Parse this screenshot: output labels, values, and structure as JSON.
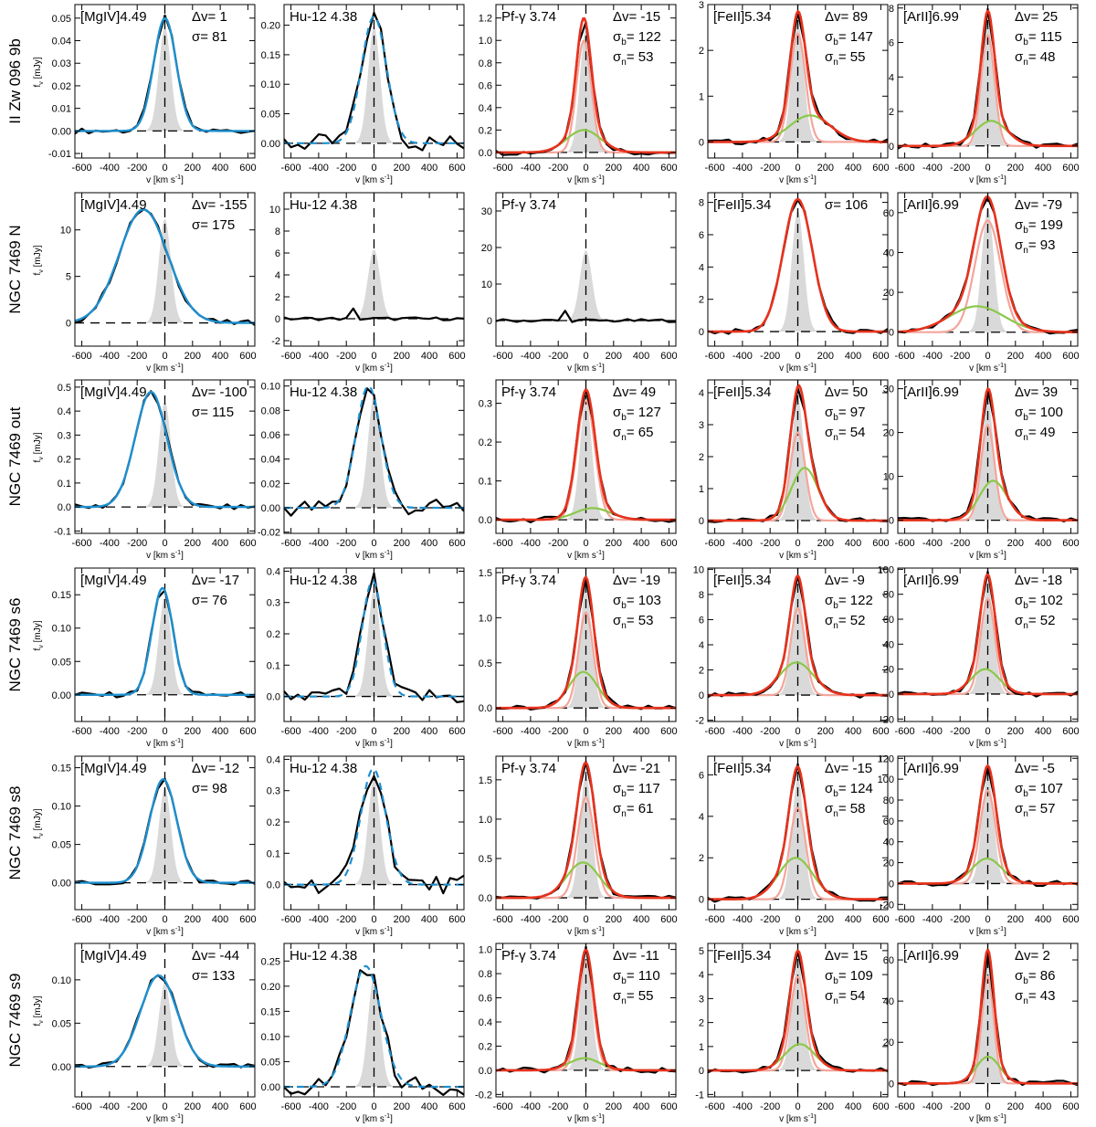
{
  "chart_data": {
    "type": "line",
    "description_axes": {
      "xlabel": "v [km s⁻¹]",
      "ylabel": "fν [mJy]",
      "xlim": [
        -650,
        650
      ],
      "xticks": [
        -600,
        -400,
        -200,
        0,
        200,
        400,
        600
      ]
    },
    "colors": {
      "data": "#000000",
      "single_fit": "#1e8fcf",
      "total_fit": "#e8321d",
      "narrow": "#f4a59b",
      "broad": "#8bc84a",
      "instrument_profile": "#d9d9d9",
      "zero_line": "#000000"
    },
    "rows": [
      {
        "label": "II Zw 096 9b",
        "panels": [
          {
            "line": "[MgIV]4.49",
            "dv": "Δv= 1",
            "s1": "σ= 81",
            "s2": "",
            "type": "single",
            "ylim": [
              -0.012,
              0.056
            ],
            "yticks": [
              -0.01,
              0.0,
              0.01,
              0.02,
              0.03,
              0.04,
              0.05
            ],
            "ydec": 2,
            "total": {
              "v0": 1,
              "peak": 0.05,
              "sigma": 81
            }
          },
          {
            "line": "Hu-12 4.38",
            "dv": "",
            "s1": "",
            "s2": "",
            "type": "dashed",
            "ylim": [
              -0.025,
              0.235
            ],
            "yticks": [
              0.0,
              0.05,
              0.1,
              0.15,
              0.2
            ],
            "ydec": 2,
            "total": {
              "v0": 0,
              "peak": 0.215,
              "sigma": 90
            }
          },
          {
            "line": "Pf-γ 3.74",
            "dv": "Δv= -15",
            "s1": "σb= 122",
            "s2": "σn= 53",
            "type": "double",
            "ylim": [
              -0.05,
              1.32
            ],
            "yticks": [
              0.0,
              0.2,
              0.4,
              0.6,
              0.8,
              1.0,
              1.2
            ],
            "ydec": 1,
            "total": {
              "v0": -15,
              "peak": 1.2
            },
            "broad": {
              "v0": -15,
              "peak": 0.2,
              "sigma": 122
            },
            "narrow": {
              "v0": -15,
              "peak": 1.0,
              "sigma": 53
            }
          },
          {
            "line": "[FeII]5.34",
            "dv": "Δv= 89",
            "s1": "σb= 147",
            "s2": "σn= 55",
            "type": "double",
            "ylim": [
              -0.35,
              3.0
            ],
            "yticks": [
              0,
              1,
              2,
              3
            ],
            "ydec": 0,
            "total": {
              "v0": 89,
              "peak": 2.85
            },
            "broad": {
              "v0": 89,
              "peak": 0.58,
              "sigma": 147
            },
            "narrow": {
              "v0": 0,
              "peak": 2.35,
              "sigma": 55
            }
          },
          {
            "line": "[ArII]6.99",
            "dv": "Δv= 25",
            "s1": "σb= 115",
            "s2": "σn= 48",
            "type": "double",
            "ylim": [
              -0.7,
              8.2
            ],
            "yticks": [
              0,
              2,
              4,
              6,
              8
            ],
            "ydec": 0,
            "total": {
              "v0": 25,
              "peak": 7.85
            },
            "broad": {
              "v0": 25,
              "peak": 1.45,
              "sigma": 115
            },
            "narrow": {
              "v0": 0,
              "peak": 6.4,
              "sigma": 48
            }
          }
        ]
      },
      {
        "label": "NGC 7469 N",
        "panels": [
          {
            "line": "[MgIV]4.49",
            "dv": "Δv= -155",
            "s1": "σ= 175",
            "s2": "",
            "type": "single",
            "ylim": [
              -2.5,
              14.0
            ],
            "yticks": [
              0,
              5,
              10
            ],
            "ydec": 0,
            "total": {
              "v0": -155,
              "peak": 12.2,
              "sigma": 175
            }
          },
          {
            "line": "Hu-12 4.38",
            "dv": "",
            "s1": "",
            "s2": "",
            "type": "none",
            "ylim": [
              -2.5,
              11.5
            ],
            "yticks": [
              -2,
              0,
              2,
              4,
              6,
              8,
              10
            ],
            "ydec": 0
          },
          {
            "line": "Pf-γ 3.74",
            "dv": "",
            "s1": "",
            "s2": "",
            "type": "none",
            "ylim": [
              -7.0,
              35.0
            ],
            "yticks": [
              0,
              10,
              20,
              30
            ],
            "ydec": 0
          },
          {
            "line": "[FeII]5.34",
            "dv": "",
            "s1": "σ= 106",
            "s2": "",
            "type": "single_red",
            "ylim": [
              -0.9,
              8.6
            ],
            "yticks": [
              0,
              2,
              4,
              6,
              8
            ],
            "ydec": 0,
            "total": {
              "v0": 0,
              "peak": 8.2,
              "sigma": 106
            }
          },
          {
            "line": "[ArII]6.99",
            "dv": "Δv= -79",
            "s1": "σb= 199",
            "s2": "σn= 93",
            "type": "double",
            "ylim": [
              -7.0,
              70.0
            ],
            "yticks": [
              0,
              20,
              40,
              60
            ],
            "ydec": 0,
            "total": {
              "v0": -79,
              "peak": 68
            },
            "broad": {
              "v0": -79,
              "peak": 13,
              "sigma": 199
            },
            "narrow": {
              "v0": 0,
              "peak": 56,
              "sigma": 93
            }
          }
        ]
      },
      {
        "label": "NGC 7469 out",
        "panels": [
          {
            "line": "[MgIV]4.49",
            "dv": "Δv= -100",
            "s1": "σ= 115",
            "s2": "",
            "type": "single",
            "ylim": [
              -0.11,
              0.53
            ],
            "yticks": [
              -0.1,
              0.0,
              0.1,
              0.2,
              0.3,
              0.4,
              0.5
            ],
            "ydec": 1,
            "total": {
              "v0": -100,
              "peak": 0.48,
              "sigma": 115
            }
          },
          {
            "line": "Hu-12 4.38",
            "dv": "",
            "s1": "",
            "s2": "",
            "type": "dashed",
            "ylim": [
              -0.021,
              0.105
            ],
            "yticks": [
              -0.02,
              0.0,
              0.02,
              0.04,
              0.06,
              0.08,
              0.1
            ],
            "ydec": 2,
            "total": {
              "v0": -40,
              "peak": 0.1,
              "sigma": 90
            }
          },
          {
            "line": "Pf-γ 3.74",
            "dv": "Δv= 49",
            "s1": "σb= 127",
            "s2": "σn= 65",
            "type": "double",
            "ylim": [
              -0.035,
              0.36
            ],
            "yticks": [
              0.0,
              0.1,
              0.2,
              0.3
            ],
            "ydec": 1,
            "total": {
              "v0": 49,
              "peak": 0.335
            },
            "broad": {
              "v0": 49,
              "peak": 0.03,
              "sigma": 127
            },
            "narrow": {
              "v0": 0,
              "peak": 0.3,
              "sigma": 65
            }
          },
          {
            "line": "[FeII]5.34",
            "dv": "Δv= 50",
            "s1": "σb= 97",
            "s2": "σn= 54",
            "type": "double",
            "ylim": [
              -0.4,
              4.4
            ],
            "yticks": [
              0,
              1,
              2,
              3,
              4
            ],
            "ydec": 0,
            "total": {
              "v0": 50,
              "peak": 4.2
            },
            "broad": {
              "v0": 50,
              "peak": 1.65,
              "sigma": 97
            },
            "narrow": {
              "v0": 0,
              "peak": 2.6,
              "sigma": 54
            }
          },
          {
            "line": "[ArII]6.99",
            "dv": "Δv= 39",
            "s1": "σb= 100",
            "s2": "σn= 49",
            "type": "double",
            "ylim": [
              -3.0,
              32.0
            ],
            "yticks": [
              0,
              10,
              20,
              30
            ],
            "ydec": 0,
            "total": {
              "v0": 39,
              "peak": 30
            },
            "broad": {
              "v0": 39,
              "peak": 9,
              "sigma": 100
            },
            "narrow": {
              "v0": 0,
              "peak": 21,
              "sigma": 49
            }
          }
        ]
      },
      {
        "label": "NGC 7469 s6",
        "panels": [
          {
            "line": "[MgIV]4.49",
            "dv": "Δv= -17",
            "s1": "σ= 76",
            "s2": "",
            "type": "single",
            "ylim": [
              -0.04,
              0.19
            ],
            "yticks": [
              0.0,
              0.05,
              0.1,
              0.15
            ],
            "ydec": 2,
            "total": {
              "v0": -17,
              "peak": 0.16,
              "sigma": 76
            }
          },
          {
            "line": "Hu-12 4.38",
            "dv": "",
            "s1": "",
            "s2": "",
            "type": "dashed",
            "ylim": [
              -0.08,
              0.41
            ],
            "yticks": [
              0.0,
              0.1,
              0.2,
              0.3,
              0.4
            ],
            "ydec": 1,
            "total": {
              "v0": -10,
              "peak": 0.37,
              "sigma": 75
            }
          },
          {
            "line": "Pf-γ 3.74",
            "dv": "Δv= -19",
            "s1": "σb= 103",
            "s2": "σn= 53",
            "type": "double",
            "ylim": [
              -0.15,
              1.55
            ],
            "yticks": [
              0.0,
              0.5,
              1.0,
              1.5
            ],
            "ydec": 1,
            "total": {
              "v0": -19,
              "peak": 1.45
            },
            "broad": {
              "v0": -19,
              "peak": 0.4,
              "sigma": 103
            },
            "narrow": {
              "v0": 0,
              "peak": 1.1,
              "sigma": 53
            }
          },
          {
            "line": "[FeII]5.34",
            "dv": "Δv= -9",
            "s1": "σb= 122",
            "s2": "σn= 52",
            "type": "double",
            "ylim": [
              -2.1,
              10.1
            ],
            "yticks": [
              -2,
              0,
              2,
              4,
              6,
              8,
              10
            ],
            "ydec": 0,
            "total": {
              "v0": -9,
              "peak": 9.5
            },
            "broad": {
              "v0": -9,
              "peak": 2.6,
              "sigma": 122
            },
            "narrow": {
              "v0": 0,
              "peak": 7.0,
              "sigma": 52
            }
          },
          {
            "line": "[ArII]6.99",
            "dv": "Δv= -18",
            "s1": "σb= 102",
            "s2": "σn= 52",
            "type": "double",
            "ylim": [
              -22.0,
              101.0
            ],
            "yticks": [
              -20,
              0,
              20,
              40,
              60,
              80,
              100
            ],
            "ydec": 0,
            "total": {
              "v0": -18,
              "peak": 96
            },
            "broad": {
              "v0": -18,
              "peak": 20,
              "sigma": 102
            },
            "narrow": {
              "v0": 0,
              "peak": 76,
              "sigma": 52
            }
          }
        ]
      },
      {
        "label": "NGC 7469 s8",
        "panels": [
          {
            "line": "[MgIV]4.49",
            "dv": "Δv= -12",
            "s1": "σ= 98",
            "s2": "",
            "type": "single",
            "ylim": [
              -0.035,
              0.165
            ],
            "yticks": [
              0.0,
              0.05,
              0.1,
              0.15
            ],
            "ydec": 2,
            "total": {
              "v0": -12,
              "peak": 0.135,
              "sigma": 98
            }
          },
          {
            "line": "Hu-12 4.38",
            "dv": "",
            "s1": "",
            "s2": "",
            "type": "dashed",
            "ylim": [
              -0.08,
              0.41
            ],
            "yticks": [
              0.0,
              0.1,
              0.2,
              0.3,
              0.4
            ],
            "ydec": 1,
            "total": {
              "v0": -5,
              "peak": 0.37,
              "sigma": 90
            }
          },
          {
            "line": "Pf-γ 3.74",
            "dv": "Δv= -21",
            "s1": "σb= 117",
            "s2": "σn= 61",
            "type": "double",
            "ylim": [
              -0.15,
              1.8
            ],
            "yticks": [
              0.0,
              0.5,
              1.0,
              1.5
            ],
            "ydec": 1,
            "total": {
              "v0": -21,
              "peak": 1.72
            },
            "broad": {
              "v0": -21,
              "peak": 0.45,
              "sigma": 117
            },
            "narrow": {
              "v0": 0,
              "peak": 1.3,
              "sigma": 61
            }
          },
          {
            "line": "[FeII]5.34",
            "dv": "Δv= -15",
            "s1": "σb= 124",
            "s2": "σn= 58",
            "type": "double",
            "ylim": [
              -0.5,
              6.9
            ],
            "yticks": [
              0,
              2,
              4,
              6
            ],
            "ydec": 0,
            "total": {
              "v0": -15,
              "peak": 6.4
            },
            "broad": {
              "v0": -15,
              "peak": 2.0,
              "sigma": 124
            },
            "narrow": {
              "v0": 0,
              "peak": 4.4,
              "sigma": 58
            }
          },
          {
            "line": "[ArII]6.99",
            "dv": "Δv= -5",
            "s1": "σb= 107",
            "s2": "σn= 57",
            "type": "double",
            "ylim": [
              -25.0,
              122.0
            ],
            "yticks": [
              -20,
              0,
              20,
              40,
              60,
              80,
              100,
              120
            ],
            "ydec": 0,
            "total": {
              "v0": -5,
              "peak": 113
            },
            "broad": {
              "v0": -5,
              "peak": 24,
              "sigma": 107
            },
            "narrow": {
              "v0": 0,
              "peak": 90,
              "sigma": 57
            }
          }
        ]
      },
      {
        "label": "NGC 7469 s9",
        "panels": [
          {
            "line": "[MgIV]4.49",
            "dv": "Δv= -44",
            "s1": "σ= 133",
            "s2": "",
            "type": "single",
            "ylim": [
              -0.035,
              0.142
            ],
            "yticks": [
              0.0,
              0.05,
              0.1
            ],
            "ydec": 2,
            "total": {
              "v0": -44,
              "peak": 0.105,
              "sigma": 133
            }
          },
          {
            "line": "Hu-12 4.38",
            "dv": "",
            "s1": "",
            "s2": "",
            "type": "dashed",
            "ylim": [
              -0.02,
              0.285
            ],
            "yticks": [
              0.0,
              0.05,
              0.1,
              0.15,
              0.2,
              0.25
            ],
            "ydec": 2,
            "total": {
              "v0": -60,
              "peak": 0.24,
              "sigma": 110
            }
          },
          {
            "line": "Pf-γ 3.74",
            "dv": "Δv= -11",
            "s1": "σb= 110",
            "s2": "σn= 55",
            "type": "double",
            "ylim": [
              -0.22,
              1.05
            ],
            "yticks": [
              -0.2,
              0.0,
              0.2,
              0.4,
              0.6,
              0.8,
              1.0
            ],
            "ydec": 1,
            "total": {
              "v0": -11,
              "peak": 1.0
            },
            "broad": {
              "v0": -11,
              "peak": 0.1,
              "sigma": 110
            },
            "narrow": {
              "v0": 0,
              "peak": 0.9,
              "sigma": 55
            }
          },
          {
            "line": "[FeII]5.34",
            "dv": "Δv= 15",
            "s1": "σb= 109",
            "s2": "σn= 54",
            "type": "double",
            "ylim": [
              -1.1,
              5.3
            ],
            "yticks": [
              -1,
              0,
              1,
              2,
              3,
              4,
              5
            ],
            "ydec": 0,
            "total": {
              "v0": 15,
              "peak": 5.0
            },
            "broad": {
              "v0": 15,
              "peak": 1.1,
              "sigma": 109
            },
            "narrow": {
              "v0": 0,
              "peak": 3.9,
              "sigma": 54
            }
          },
          {
            "line": "[ArII]6.99",
            "dv": "Δv= 2",
            "s1": "σb= 86",
            "s2": "σn= 43",
            "type": "double",
            "ylim": [
              -6.5,
              68.0
            ],
            "yticks": [
              0,
              20,
              40,
              60
            ],
            "ydec": 0,
            "total": {
              "v0": 2,
              "peak": 65
            },
            "broad": {
              "v0": 2,
              "peak": 13,
              "sigma": 86
            },
            "narrow": {
              "v0": 0,
              "peak": 52,
              "sigma": 43
            }
          }
        ]
      }
    ]
  }
}
